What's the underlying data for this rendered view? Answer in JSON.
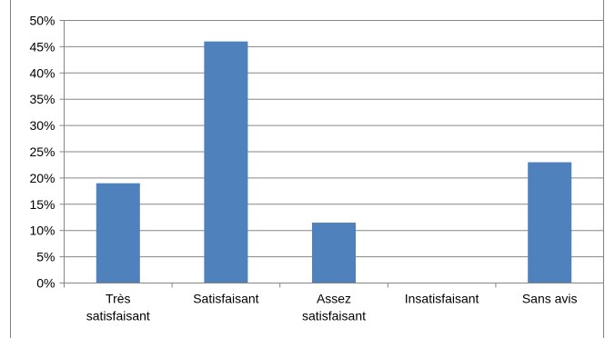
{
  "chart_data": {
    "type": "bar",
    "categories": [
      [
        "Très",
        "satisfaisant"
      ],
      [
        "Satisfaisant"
      ],
      [
        "Assez",
        "satisfaisant"
      ],
      [
        "Insatisfaisant"
      ],
      [
        "Sans avis"
      ]
    ],
    "values": [
      19,
      46,
      11.5,
      0,
      23
    ],
    "y_ticks": [
      "0%",
      "5%",
      "10%",
      "15%",
      "20%",
      "25%",
      "30%",
      "35%",
      "40%",
      "45%",
      "50%"
    ],
    "ylim": [
      0,
      50
    ],
    "grid": true,
    "legend": "none",
    "colors": {
      "bar": "#4f81bd",
      "grid": "#868686",
      "axis": "#868686",
      "border": "#7f7f7f"
    }
  }
}
